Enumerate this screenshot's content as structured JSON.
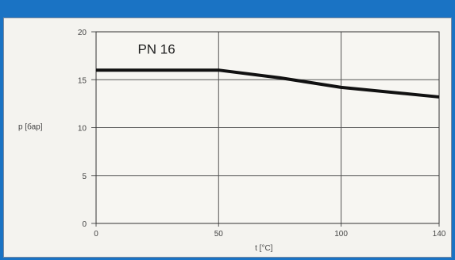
{
  "header": {
    "text": ""
  },
  "chart_data": {
    "type": "line",
    "title": "",
    "xlabel": "t [°C]",
    "ylabel": "p [бар]",
    "xlim": [
      0,
      140
    ],
    "ylim": [
      0,
      20
    ],
    "x_ticks": [
      0,
      50,
      100,
      140
    ],
    "y_ticks": [
      0,
      5,
      10,
      15,
      20
    ],
    "grid": true,
    "series": [
      {
        "name": "PN 16",
        "x": [
          0,
          50,
          75,
          100,
          140
        ],
        "y": [
          16,
          16,
          15.2,
          14.2,
          13.2
        ]
      }
    ],
    "colors": {
      "line": "#111111",
      "grid": "#555555",
      "axis": "#333333",
      "panel": "#f4f3ef",
      "frame": "#1a73c4"
    }
  }
}
